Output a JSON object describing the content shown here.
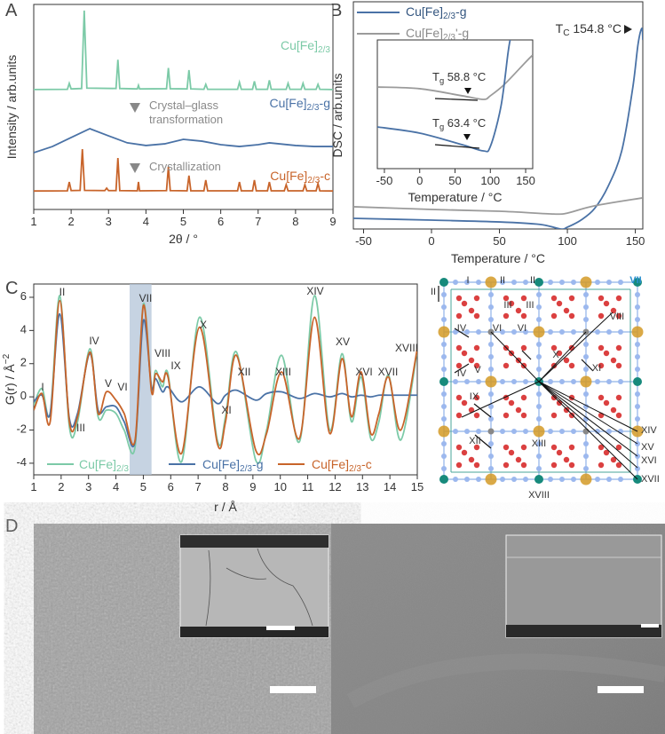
{
  "panel_labels": [
    "A",
    "B",
    "C",
    "D"
  ],
  "chart_data": [
    {
      "type": "line",
      "xlabel": "2θ / °",
      "ylabel": "Intensity / arb.units",
      "xlim": [
        1,
        9
      ],
      "xticks": [
        1,
        2,
        3,
        4,
        5,
        6,
        7,
        8,
        9
      ],
      "ylim": [
        0,
        100
      ],
      "annotations": [
        "Crystal–glass",
        "transformation",
        "Crystallization"
      ],
      "series": [
        {
          "name": "Cu[Fe]2/3",
          "color": "#7ccaa7",
          "x": [
            1,
            1.9,
            1.95,
            2.0,
            2.28,
            2.35,
            2.42,
            3.2,
            3.25,
            3.3,
            3.77,
            3.8,
            3.83,
            4.55,
            4.6,
            4.65,
            5.1,
            5.15,
            5.2,
            5.55,
            5.6,
            5.65,
            6.45,
            6.5,
            6.55,
            6.85,
            6.9,
            6.95,
            7.25,
            7.3,
            7.35,
            7.75,
            7.8,
            7.85,
            8.15,
            8.2,
            8.25,
            8.55,
            8.6,
            8.65,
            9
          ],
          "values": [
            58.5,
            58.6,
            61.5,
            58.8,
            59,
            97,
            59.2,
            59,
            73,
            59,
            58.8,
            60.5,
            58.8,
            58.9,
            69,
            58.9,
            58.8,
            68,
            58.8,
            58.6,
            61,
            58.6,
            58.6,
            62,
            58.6,
            58.6,
            62.5,
            58.6,
            58.6,
            63,
            58.6,
            58.6,
            61.5,
            58.6,
            58.6,
            61.5,
            58.6,
            58.6,
            61,
            58.6,
            58.5
          ]
        },
        {
          "name": "Cu[Fe]2/3-g",
          "color": "#4a72a6",
          "x": [
            1,
            1.5,
            2,
            2.5,
            3,
            3.5,
            4,
            4.5,
            5,
            5.5,
            6,
            6.5,
            7,
            7.3,
            8,
            8.5,
            9
          ],
          "values": [
            27.7,
            30.7,
            35.1,
            39.4,
            35.9,
            32.5,
            31.2,
            32.0,
            34.2,
            33.3,
            31.6,
            30.7,
            31.6,
            32.5,
            31.2,
            30.7,
            30.7
          ]
        },
        {
          "name": "Cu[Fe]2/3-c",
          "color": "#c8642a",
          "x": [
            1,
            1.9,
            1.95,
            2.0,
            2.24,
            2.3,
            2.36,
            2.9,
            2.95,
            3.0,
            3.2,
            3.25,
            3.3,
            3.77,
            3.8,
            3.83,
            4.55,
            4.6,
            4.65,
            5.1,
            5.15,
            5.2,
            5.55,
            5.6,
            5.65,
            6.45,
            6.5,
            6.55,
            6.85,
            6.9,
            6.95,
            7.25,
            7.3,
            7.35,
            7.7,
            7.75,
            7.8,
            8.2,
            8.25,
            8.3,
            8.55,
            8.6,
            8.65,
            9
          ],
          "values": [
            9,
            9.1,
            13.4,
            9.2,
            9.3,
            29.4,
            9.3,
            9.2,
            10.4,
            9.2,
            9.2,
            25.1,
            9.2,
            9.1,
            13.4,
            9.1,
            9.2,
            20.8,
            9.2,
            9.1,
            16.5,
            9.1,
            9.1,
            14.3,
            9.1,
            9.1,
            13.4,
            9.1,
            9.1,
            14.3,
            9.1,
            9.1,
            13.4,
            9.1,
            9.1,
            12.1,
            9.1,
            9.1,
            12.1,
            9.1,
            9.1,
            12.6,
            9.1,
            9
          ]
        }
      ]
    },
    {
      "type": "line",
      "xlabel": "Temperature / °C",
      "ylabel": "DSC / arb.units",
      "xlim": [
        -57.5,
        155.5
      ],
      "xticks": [
        -50,
        0,
        50,
        100,
        150
      ],
      "ylim": [
        0,
        100
      ],
      "annotations": [
        "TC 154.8 °C"
      ],
      "series": [
        {
          "name": "Cu[Fe]2/3-g",
          "color": "#4a72a6",
          "x": [
            -57.5,
            0,
            50,
            80,
            95,
            100,
            110,
            120,
            130,
            140,
            148,
            152,
            154.8,
            155.5
          ],
          "values": [
            4.7,
            3.9,
            3.1,
            2.0,
            0,
            0.8,
            3.9,
            9.0,
            18.8,
            34.4,
            61.7,
            81.3,
            88.3,
            83.2
          ]
        },
        {
          "name": "Cu[Fe]2/3'-g",
          "color": "#9b9b9b",
          "x": [
            -57.5,
            0,
            50,
            90,
            100,
            120,
            155.5
          ],
          "values": [
            9.8,
            8.6,
            7.8,
            6.6,
            7.0,
            10.2,
            13.7
          ]
        }
      ]
    },
    {
      "type": "line",
      "xlabel": "Temperature / °C",
      "xlim": [
        -60,
        160
      ],
      "xticks": [
        -50,
        0,
        50,
        100,
        150
      ],
      "ylim": [
        0,
        100
      ],
      "annotations": [
        "Tg 58.8 °C",
        "Tg 63.4 °C"
      ],
      "series": [
        {
          "color": "#9b9b9b",
          "x": [
            -60,
            0,
            60,
            90,
            100,
            120,
            150,
            160
          ],
          "values": [
            63.4,
            62.1,
            56.6,
            53.8,
            56.6,
            65.5,
            82.8,
            88.3
          ]
        },
        {
          "color": "#4a72a6",
          "x": [
            -60,
            0,
            60,
            90,
            100,
            115,
            125,
            128
          ],
          "values": [
            32.4,
            27.6,
            18.6,
            13.8,
            17.2,
            48.3,
            89.7,
            100
          ]
        }
      ]
    },
    {
      "type": "line",
      "xlabel": "r / Å",
      "ylabel": "G(r) / Å−2",
      "xlim": [
        1,
        15
      ],
      "xticks": [
        1,
        2,
        3,
        4,
        5,
        6,
        7,
        8,
        9,
        10,
        11,
        12,
        13,
        14,
        15
      ],
      "ylim": [
        -4.7,
        6.8
      ],
      "yticks": [
        -4,
        -2,
        0,
        2,
        4,
        6
      ],
      "highlight_range": [
        4.5,
        5.3
      ],
      "peak_labels": [
        "I",
        "II",
        "III",
        "IV",
        "V",
        "VI",
        "VII",
        "VIII",
        "IX",
        "X",
        "XI",
        "XII",
        "XIII",
        "XIV",
        "XV",
        "XVI",
        "XVII",
        "XVIII"
      ],
      "x": [
        1.0,
        1.3,
        1.6,
        1.95,
        2.3,
        2.6,
        3.05,
        3.35,
        3.65,
        4.0,
        4.3,
        4.7,
        5.0,
        5.3,
        5.45,
        5.7,
        5.9,
        6.4,
        7.05,
        7.7,
        8.0,
        8.4,
        9.1,
        9.5,
        10.05,
        10.7,
        11.25,
        11.8,
        12.25,
        12.6,
        12.95,
        13.3,
        13.6,
        13.95,
        14.4,
        15.0
      ],
      "series": [
        {
          "name": "Cu[Fe]2/3",
          "color": "#7ccaa7",
          "values": [
            -0.5,
            0.5,
            -1.0,
            6.1,
            -1.8,
            -1.5,
            2.9,
            -1.2,
            -0.8,
            -1.0,
            -2.0,
            -3.0,
            5.6,
            0.5,
            1.6,
            0.6,
            1.4,
            -3.9,
            4.8,
            -2.6,
            -1.2,
            2.7,
            -3.8,
            -2.0,
            2.5,
            -2.7,
            6.1,
            -2.0,
            2.6,
            -1.5,
            1.2,
            -2.5,
            -1.5,
            1.3,
            -2.6,
            2.8
          ]
        },
        {
          "name": "Cu[Fe]2/3-g",
          "color": "#4a72a6",
          "values": [
            -0.3,
            0.1,
            -1.0,
            5.0,
            -1.3,
            -1.0,
            2.6,
            -0.8,
            -0.6,
            -0.6,
            -1.5,
            -2.7,
            4.6,
            0.6,
            1.1,
            0.3,
            0.6,
            -0.3,
            0.6,
            -0.4,
            0.1,
            0.4,
            -0.2,
            0.2,
            0.3,
            -0.1,
            0.2,
            0.0,
            0.2,
            0.0,
            0.1,
            0.0,
            0.1,
            0.1,
            0.1,
            0.1
          ]
        },
        {
          "name": "Cu[Fe]2/3-c",
          "color": "#c8642a",
          "values": [
            -0.8,
            0.2,
            -1.5,
            5.8,
            -1.5,
            -1.2,
            2.7,
            -1.0,
            0.3,
            -0.2,
            -1.0,
            -2.6,
            5.5,
            0.3,
            1.4,
            0.9,
            1.2,
            -3.4,
            4.2,
            -2.8,
            -1.5,
            2.5,
            -3.2,
            -2.2,
            1.5,
            -2.5,
            4.8,
            -2.2,
            2.3,
            -1.2,
            1.5,
            -2.2,
            -1.0,
            1.2,
            -2.0,
            2.9
          ]
        }
      ]
    }
  ],
  "structure": {
    "labels": [
      "I",
      "II",
      "II",
      "II",
      "III",
      "III",
      "IV",
      "IV",
      "V",
      "VI",
      "VI",
      "VII",
      "VIII",
      "IX",
      "X",
      "XI",
      "XII",
      "XIII",
      "XIV",
      "XV",
      "XVI",
      "XVII",
      "XVIII"
    ]
  }
}
